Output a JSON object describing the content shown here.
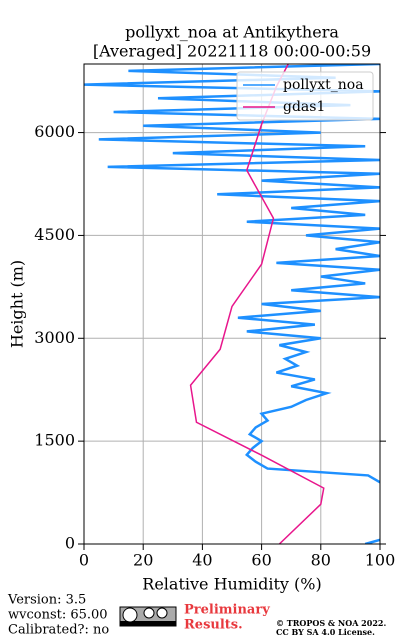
{
  "chart_data": {
    "type": "line",
    "title": "pollyxt_noa at Antikythera",
    "subtitle": "[Averaged] 20221118 00:00-00:59",
    "xlabel": "Relative Humidity (%)",
    "ylabel": "Height (m)",
    "xlim": [
      0,
      100
    ],
    "xticks": [
      0,
      20,
      40,
      60,
      80,
      100
    ],
    "ylim": [
      0,
      7000
    ],
    "yticks": [
      0,
      1500,
      3000,
      4500,
      6000
    ],
    "grid": true,
    "legend": "upper right",
    "series": [
      {
        "name": "pollyxt_noa",
        "color": "#1e90ff",
        "heights": [
          0,
          60,
          120,
          900,
          1000,
          1100,
          1200,
          1300,
          1400,
          1500,
          1600,
          1700,
          1800,
          1900,
          2000,
          2100,
          2200,
          2300,
          2400,
          2500,
          2600,
          2700,
          2800,
          2900,
          3000,
          3100,
          3200,
          3300,
          3400,
          3500,
          3600,
          3700,
          3800,
          3900,
          4000,
          4100,
          4200,
          4300,
          4400,
          4500,
          4600,
          4700,
          4800,
          4900,
          5000,
          5100,
          5200,
          5300,
          5400,
          5500,
          5600,
          5700,
          5800,
          5900,
          6000,
          6100,
          6200,
          6300,
          6400,
          6500,
          6600,
          6700,
          6800,
          6900,
          7000
        ],
        "values": [
          95,
          100,
          null,
          100,
          96,
          62,
          58,
          55,
          57,
          60,
          56,
          58,
          62,
          60,
          70,
          75,
          82,
          70,
          78,
          65,
          72,
          68,
          75,
          66,
          80,
          55,
          78,
          52,
          80,
          60,
          100,
          70,
          95,
          80,
          100,
          65,
          100,
          85,
          100,
          75,
          100,
          55,
          95,
          70,
          100,
          45,
          100,
          60,
          100,
          8,
          100,
          30,
          95,
          5,
          80,
          20,
          100,
          10,
          90,
          25,
          100,
          0,
          85,
          15,
          100
        ]
      },
      {
        "name": "gdas1",
        "color": "#e8168c",
        "heights": [
          0,
          580,
          815,
          1295,
          1775,
          2315,
          2840,
          3465,
          4080,
          4750,
          5450,
          6120,
          6670,
          7000
        ],
        "values": [
          66,
          80,
          81,
          60,
          38,
          36,
          46,
          50,
          60,
          64,
          55,
          60,
          65,
          69
        ]
      }
    ],
    "footer": {
      "version": "Version: 3.5",
      "wvconst": "wvconst:  65.00",
      "calibrated": "Calibrated?: no",
      "preliminary": "Preliminary",
      "results": "Results.",
      "copyright": "© TROPOS & NOA 2022.",
      "license": "CC BY SA 4.0 License."
    }
  }
}
